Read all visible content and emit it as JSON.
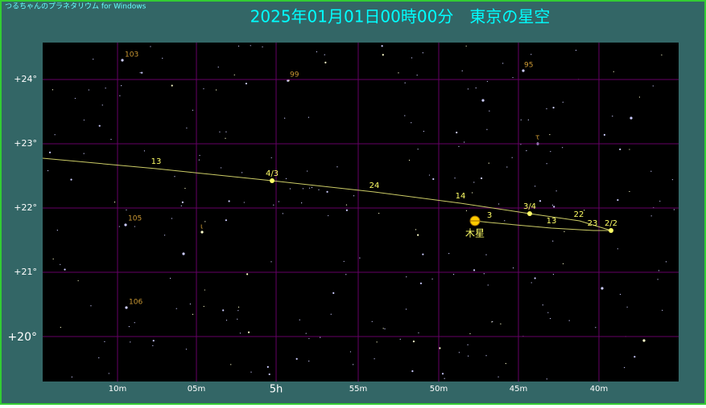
{
  "header": {
    "app_name": "つるちゃんのプラネタリウム for Windows",
    "title": "2025年01月01日00時00分　東京の星空"
  },
  "axes": {
    "declination_labels": [
      "+24°",
      "+23°",
      "+22°",
      "+21°",
      "+20°"
    ],
    "ra_labels": [
      "10m",
      "05m",
      "5h",
      "55m",
      "50m",
      "45m",
      "40m"
    ]
  },
  "ecliptic_labels": [
    "13",
    "4/3",
    "24",
    "14",
    "3/4",
    "22",
    "23",
    "2/2"
  ],
  "jupiter_path_labels": [
    "3",
    "13"
  ],
  "planet_label": "木星",
  "star_labels": [
    "103",
    "99",
    "95",
    "τ",
    "105",
    "ι",
    "106"
  ]
}
